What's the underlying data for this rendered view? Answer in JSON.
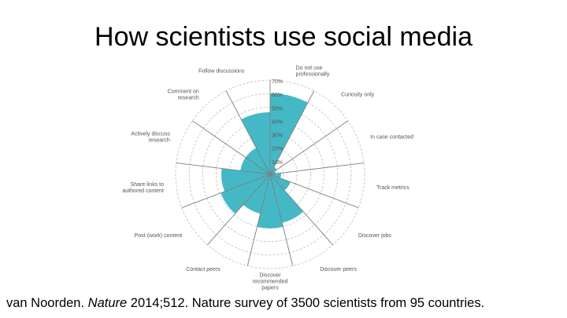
{
  "slide": {
    "title": "How scientists use social media"
  },
  "citation": {
    "authors": "van Noorden. ",
    "journal": "Nature",
    "rest": " 2014;512. Nature survey of 3500 scientists from 95 countries."
  },
  "chart_data": {
    "type": "polar-area",
    "title": "",
    "categories": [
      "Do not use professionally",
      "Curiosity only",
      "In case contacted",
      "Track metrics",
      "Discover jobs",
      "Discover peers",
      "Discover recommended papers",
      "Contact peers",
      "Post (work) content",
      "Share links to authored content",
      "Actively discuss research",
      "Comment on research",
      "Follow discussions"
    ],
    "category_lines": [
      [
        "Do not use",
        "professionally"
      ],
      [
        "Curiosity only"
      ],
      [
        "In case contacted"
      ],
      [
        "Track metrics"
      ],
      [
        "Discover jobs"
      ],
      [
        "Discover peers"
      ],
      [
        "Discover",
        "recommended",
        "papers"
      ],
      [
        "Contact peers"
      ],
      [
        "Post (work) content"
      ],
      [
        "Share links to",
        "authored content"
      ],
      [
        "Actively discuss",
        "research"
      ],
      [
        "Comment on",
        "research"
      ],
      [
        "Follow discussions"
      ]
    ],
    "series": [
      {
        "values": [
          60,
          6,
          4,
          8,
          16,
          37,
          40,
          30,
          39,
          36,
          22,
          22,
          46
        ]
      }
    ],
    "radial_ticks": [
      "10%",
      "20%",
      "30%",
      "40%",
      "50%",
      "60%",
      "70%"
    ],
    "rmax": 70,
    "grid": true,
    "colors": {
      "fill": "#45b8c6",
      "grid": "#bfbfbf",
      "spoke": "#7f7f7f",
      "label": "#555555"
    }
  }
}
